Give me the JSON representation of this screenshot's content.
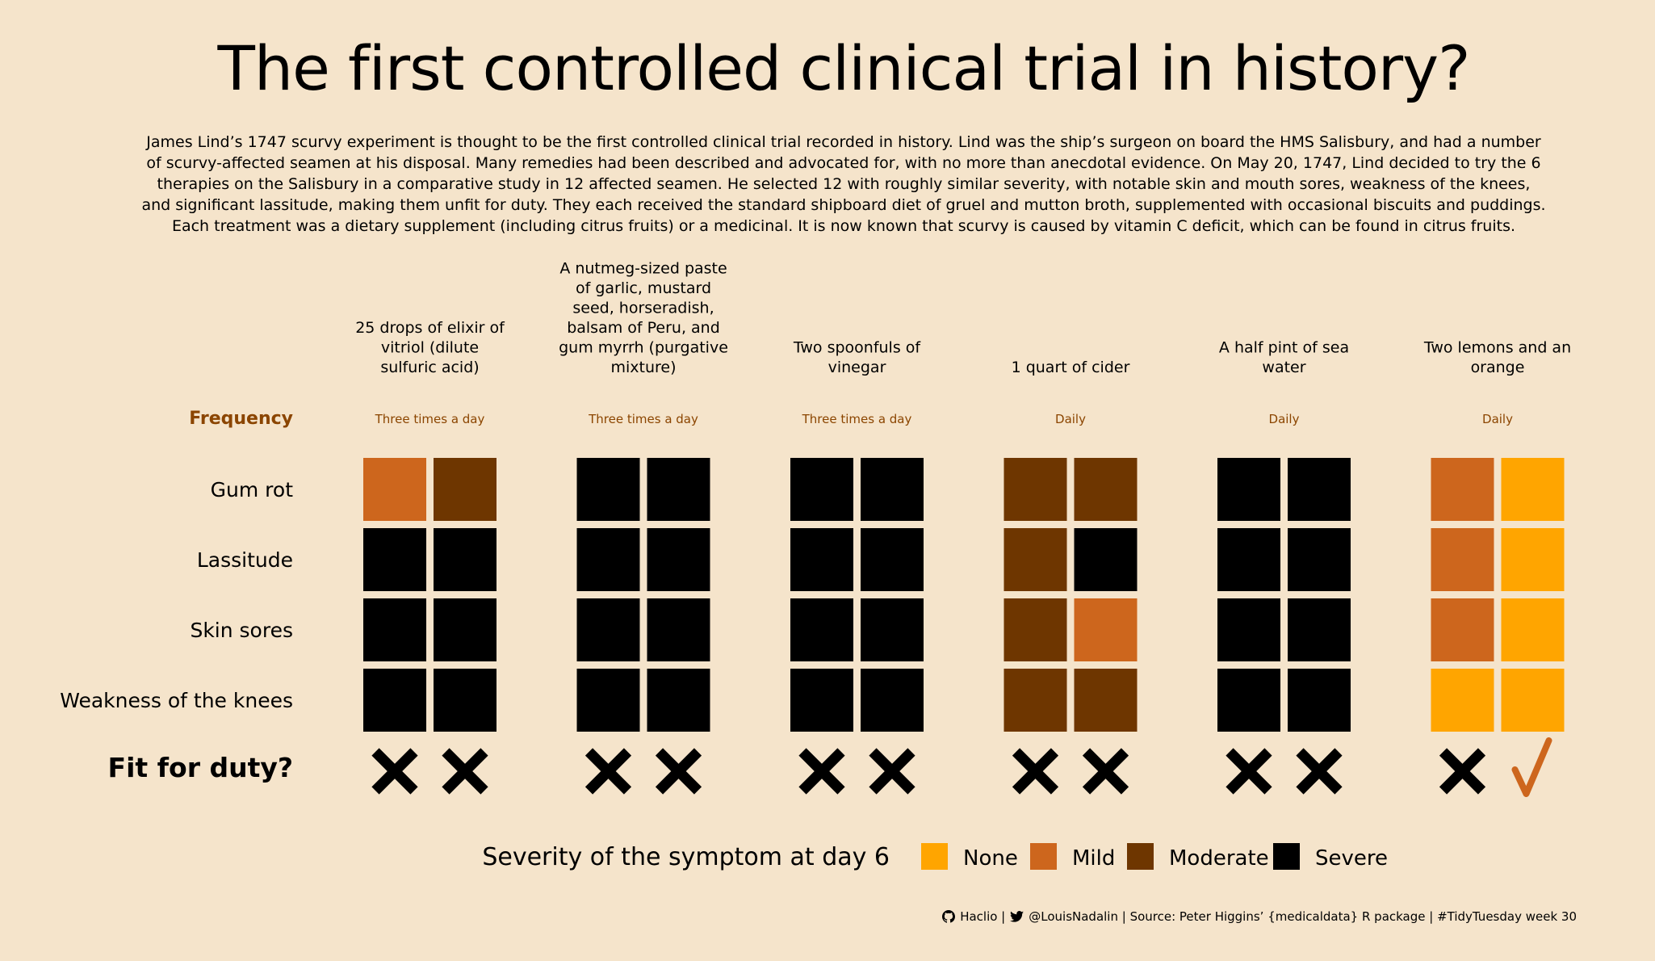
{
  "title": "The first controlled clinical trial in history?",
  "intro": "James Lind’s 1747 scurvy experiment is thought to be the first controlled clinical trial recorded in history. Lind was the ship’s surgeon on board the HMS Salisbury, and had a number of scurvy-affected seamen at his disposal. Many remedies had been described and advocated for, with no more than anecdotal evidence. On May 20, 1747, Lind decided to try the 6 therapies on the Salisbury in a comparative study in 12 affected seamen. He selected 12 with roughly similar severity, with notable skin and mouth sores, weakness of the knees, and significant lassitude, making them unfit for duty. They each received the standard shipboard diet of gruel and mutton broth, supplemented with occasional biscuits and puddings. Each treatment was a dietary supplement (including citrus fruits) or a medicinal. It is now known that scurvy is caused by vitamin C deficit, which can be found in citrus fruits.",
  "footer": {
    "github_icon": "github-icon",
    "github": "Haclio |",
    "twitter_icon": "twitter-icon",
    "rest": "@LouisNadalin | Source: Peter Higgins’ {medicaldata} R package | #TidyTuesday week 30"
  },
  "chart_data": {
    "type": "heatmap",
    "frequency_label": "Frequency",
    "fit_label": "Fit for duty?",
    "symptoms": [
      "Gum rot",
      "Lassitude",
      "Skin sores",
      "Weakness of the knees"
    ],
    "levels": [
      "None",
      "Mild",
      "Moderate",
      "Severe"
    ],
    "colors": {
      "None": "#ffa500",
      "Mild": "#cd661d",
      "Moderate": "#6e3600",
      "Severe": "#000000",
      "frequency": "#8b4500"
    },
    "legend_title": "Severity of the symptom at day 6",
    "treatments": [
      {
        "lines": [
          "25 drops of elixir of",
          "vitriol (dilute",
          "sulfuric acid)"
        ],
        "frequency": "Three times a day",
        "severity": [
          [
            "Mild",
            "Moderate"
          ],
          [
            "Severe",
            "Severe"
          ],
          [
            "Severe",
            "Severe"
          ],
          [
            "Severe",
            "Severe"
          ]
        ],
        "fit": [
          false,
          false
        ]
      },
      {
        "lines": [
          "A nutmeg-sized paste",
          "of garlic, mustard",
          "seed, horseradish,",
          "balsam of Peru, and",
          "gum myrrh (purgative",
          "mixture)"
        ],
        "frequency": "Three times a day",
        "severity": [
          [
            "Severe",
            "Severe"
          ],
          [
            "Severe",
            "Severe"
          ],
          [
            "Severe",
            "Severe"
          ],
          [
            "Severe",
            "Severe"
          ]
        ],
        "fit": [
          false,
          false
        ]
      },
      {
        "lines": [
          "Two spoonfuls of",
          "vinegar"
        ],
        "frequency": "Three times a day",
        "severity": [
          [
            "Severe",
            "Severe"
          ],
          [
            "Severe",
            "Severe"
          ],
          [
            "Severe",
            "Severe"
          ],
          [
            "Severe",
            "Severe"
          ]
        ],
        "fit": [
          false,
          false
        ]
      },
      {
        "lines": [
          "1 quart of cider"
        ],
        "frequency": "Daily",
        "severity": [
          [
            "Moderate",
            "Moderate"
          ],
          [
            "Moderate",
            "Severe"
          ],
          [
            "Moderate",
            "Mild"
          ],
          [
            "Moderate",
            "Moderate"
          ]
        ],
        "fit": [
          false,
          false
        ]
      },
      {
        "lines": [
          "A half pint of sea",
          "water"
        ],
        "frequency": "Daily",
        "severity": [
          [
            "Severe",
            "Severe"
          ],
          [
            "Severe",
            "Severe"
          ],
          [
            "Severe",
            "Severe"
          ],
          [
            "Severe",
            "Severe"
          ]
        ],
        "fit": [
          false,
          false
        ]
      },
      {
        "lines": [
          "Two lemons and an",
          "orange"
        ],
        "frequency": "Daily",
        "severity": [
          [
            "Mild",
            "None"
          ],
          [
            "Mild",
            "None"
          ],
          [
            "Mild",
            "None"
          ],
          [
            "None",
            "None"
          ]
        ],
        "fit": [
          false,
          true
        ]
      }
    ]
  }
}
